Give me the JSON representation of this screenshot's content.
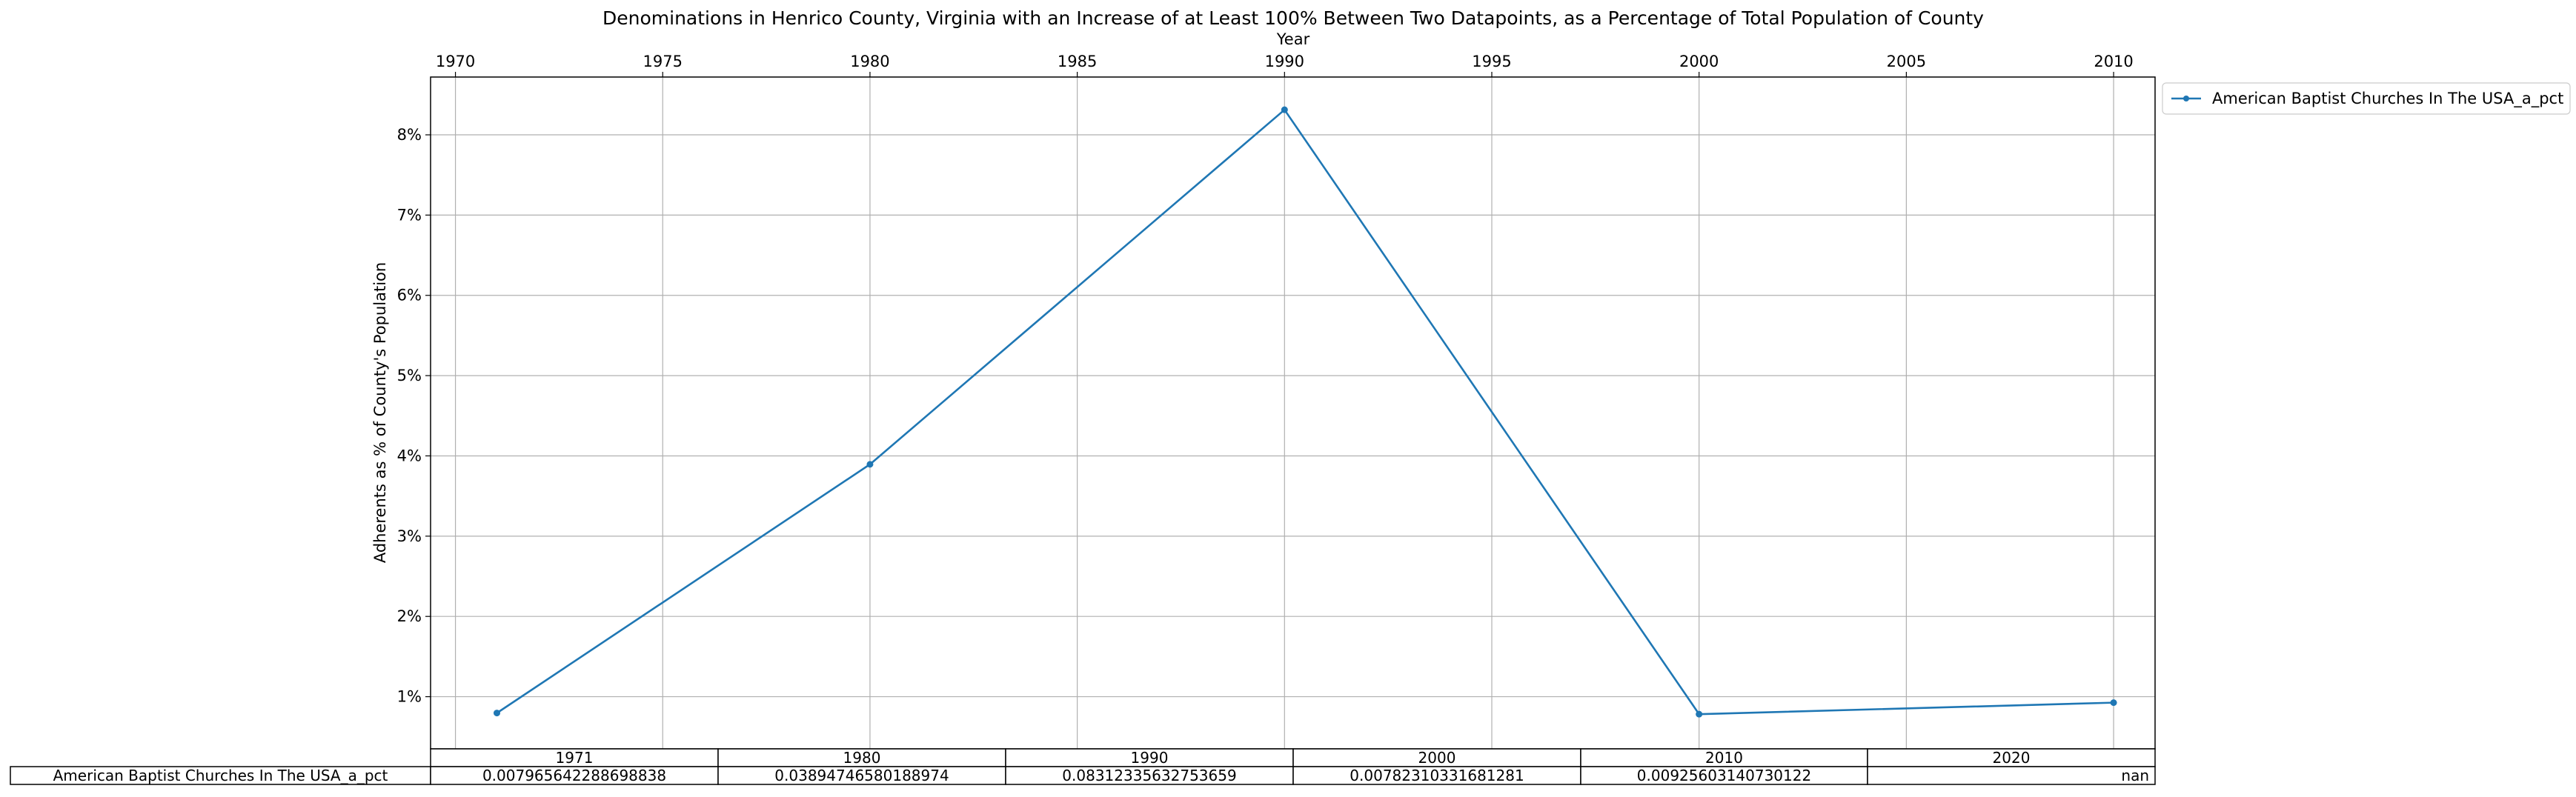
{
  "chart_data": {
    "type": "line",
    "title": "Denominations in Henrico County, Virginia with an Increase of at Least 100% Between Two Datapoints, as a Percentage of Total Population of County",
    "xlabel": "Year",
    "ylabel": "Adherents as % of County's Population",
    "x_axis_position": "top",
    "xlim": [
      1969.4,
      2011.0
    ],
    "ylim": [
      0.0035,
      0.0872
    ],
    "x_ticks": [
      1970,
      1975,
      1980,
      1985,
      1990,
      1995,
      2000,
      2005,
      2010
    ],
    "y_ticks": [
      0.01,
      0.02,
      0.03,
      0.04,
      0.05,
      0.06,
      0.07,
      0.08
    ],
    "y_tick_labels": [
      "1%",
      "2%",
      "3%",
      "4%",
      "5%",
      "6%",
      "7%",
      "8%"
    ],
    "grid": true,
    "legend_position": "outside-top-right",
    "series": [
      {
        "name": "American Baptist Churches In The USA_a_pct",
        "color": "#1f77b4",
        "x": [
          1971,
          1980,
          1990,
          2000,
          2010
        ],
        "y": [
          0.007965642288698838,
          0.03894746580188974,
          0.08312335632753659,
          0.00782310331681281,
          0.00925603140730122
        ]
      }
    ],
    "table": {
      "columns": [
        "1971",
        "1980",
        "1990",
        "2000",
        "2010",
        "2020"
      ],
      "rows": [
        {
          "label": "American Baptist Churches In The USA_a_pct",
          "cells": [
            "0.007965642288698838",
            "0.03894746580188974",
            "0.08312335632753659",
            "0.00782310331681281",
            "0.00925603140730122",
            "nan"
          ]
        }
      ]
    }
  }
}
